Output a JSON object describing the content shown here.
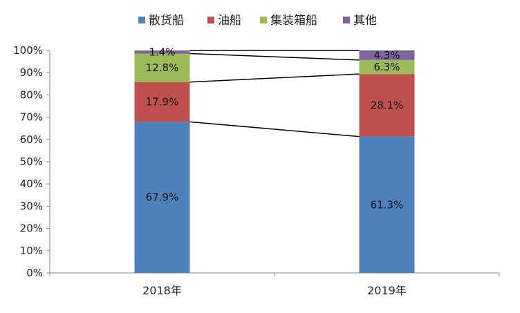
{
  "chart_data": {
    "type": "bar",
    "stacked": true,
    "percent": true,
    "categories": [
      "2018年",
      "2019年"
    ],
    "series": [
      {
        "name": "散货船",
        "values": [
          67.9,
          61.3
        ],
        "labels": [
          "67.9%",
          "61.3%"
        ],
        "color": "#4f81bd"
      },
      {
        "name": "油船",
        "values": [
          17.9,
          28.1
        ],
        "labels": [
          "17.9%",
          "28.1%"
        ],
        "color": "#c0504d"
      },
      {
        "name": "集装箱船",
        "values": [
          12.8,
          6.3
        ],
        "labels": [
          "12.8%",
          "6.3%"
        ],
        "color": "#9bbb59"
      },
      {
        "name": "其他",
        "values": [
          1.4,
          4.3
        ],
        "labels": [
          "1.4%",
          "4.3%"
        ],
        "color": "#8064a2"
      }
    ],
    "yticks": [
      "0%",
      "10%",
      "20%",
      "30%",
      "40%",
      "50%",
      "60%",
      "70%",
      "80%",
      "90%",
      "100%"
    ],
    "ylim": [
      0,
      100
    ],
    "series_lines": true,
    "legend_position": "top",
    "grid": false
  }
}
